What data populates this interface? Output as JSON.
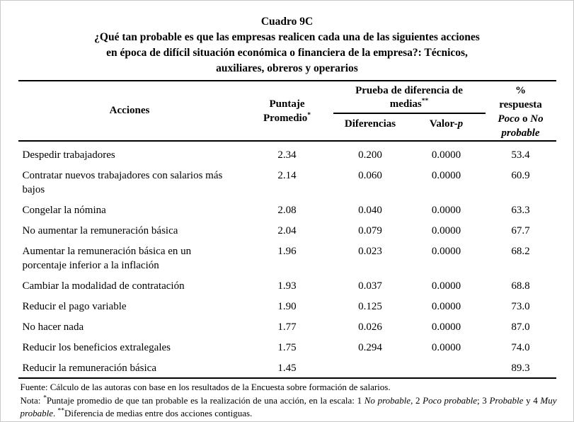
{
  "title": {
    "label": "Cuadro 9C",
    "subtitle_lines": [
      "¿Qué tan probable es que las empresas realicen cada una de las siguientes acciones",
      "en época de difícil situación económica o financiera de la empresa?: Técnicos,",
      "auxiliares, obreros y operarios"
    ]
  },
  "table": {
    "headers": {
      "acciones": "Acciones",
      "puntaje_line1": "Puntaje",
      "puntaje_line2": "Promedio",
      "puntaje_sup": "*",
      "grupo_line1": "Prueba de diferencia de",
      "grupo_line2": "medias",
      "grupo_sup": "**",
      "diferencias": "Diferencias",
      "valor_prefix": "Valor-",
      "valor_italic": "p",
      "pct_line1": "%",
      "pct_line2": "respuesta",
      "pct_line3_a": "Poco",
      "pct_line3_b": " o ",
      "pct_line3_c": "No",
      "pct_line4": "probable"
    },
    "rows": [
      {
        "action": "Despedir trabajadores",
        "puntaje": "2.34",
        "diferencia": "0.200",
        "valor_p": "0.0000",
        "pct": "53.4"
      },
      {
        "action": "Contratar nuevos trabajadores con salarios más bajos",
        "puntaje": "2.14",
        "diferencia": "0.060",
        "valor_p": "0.0000",
        "pct": "60.9"
      },
      {
        "action": "Congelar la nómina",
        "puntaje": "2.08",
        "diferencia": "0.040",
        "valor_p": "0.0000",
        "pct": "63.3"
      },
      {
        "action": "No aumentar la remuneración básica",
        "puntaje": "2.04",
        "diferencia": "0.079",
        "valor_p": "0.0000",
        "pct": "67.7"
      },
      {
        "action": "Aumentar la remuneración básica en un porcentaje inferior a la inflación",
        "puntaje": "1.96",
        "diferencia": "0.023",
        "valor_p": "0.0000",
        "pct": "68.2"
      },
      {
        "action": "Cambiar la modalidad de contratación",
        "puntaje": "1.93",
        "diferencia": "0.037",
        "valor_p": "0.0000",
        "pct": "68.8"
      },
      {
        "action": "Reducir el pago variable",
        "puntaje": "1.90",
        "diferencia": "0.125",
        "valor_p": "0.0000",
        "pct": "73.0"
      },
      {
        "action": "No hacer nada",
        "puntaje": "1.77",
        "diferencia": "0.026",
        "valor_p": "0.0000",
        "pct": "87.0"
      },
      {
        "action": "Reducir los beneficios extralegales",
        "puntaje": "1.75",
        "diferencia": "0.294",
        "valor_p": "0.0000",
        "pct": "74.0"
      },
      {
        "action": "Reducir la remuneración básica",
        "puntaje": "1.45",
        "diferencia": "",
        "valor_p": "",
        "pct": "89.3"
      }
    ]
  },
  "notes": {
    "fuente": "Fuente: Cálculo de las autoras con base en los resultados de la Encuesta sobre formación de salarios.",
    "nota_segments": [
      {
        "t": "Nota: "
      },
      {
        "t": "*",
        "sup": true
      },
      {
        "t": "Puntaje promedio de que tan probable es la realización de una acción, en la escala: 1 "
      },
      {
        "t": "No probable",
        "i": true
      },
      {
        "t": ", 2 "
      },
      {
        "t": "Poco probable",
        "i": true
      },
      {
        "t": "; 3 "
      },
      {
        "t": "Probable",
        "i": true
      },
      {
        "t": " y 4 "
      },
      {
        "t": "Muy probable",
        "i": true
      },
      {
        "t": ". "
      },
      {
        "t": "**",
        "sup": true
      },
      {
        "t": "Diferencia de medias entre dos acciones contiguas."
      }
    ]
  },
  "colors": {
    "text": "#000000",
    "background": "#ffffff",
    "rule": "#000000"
  }
}
